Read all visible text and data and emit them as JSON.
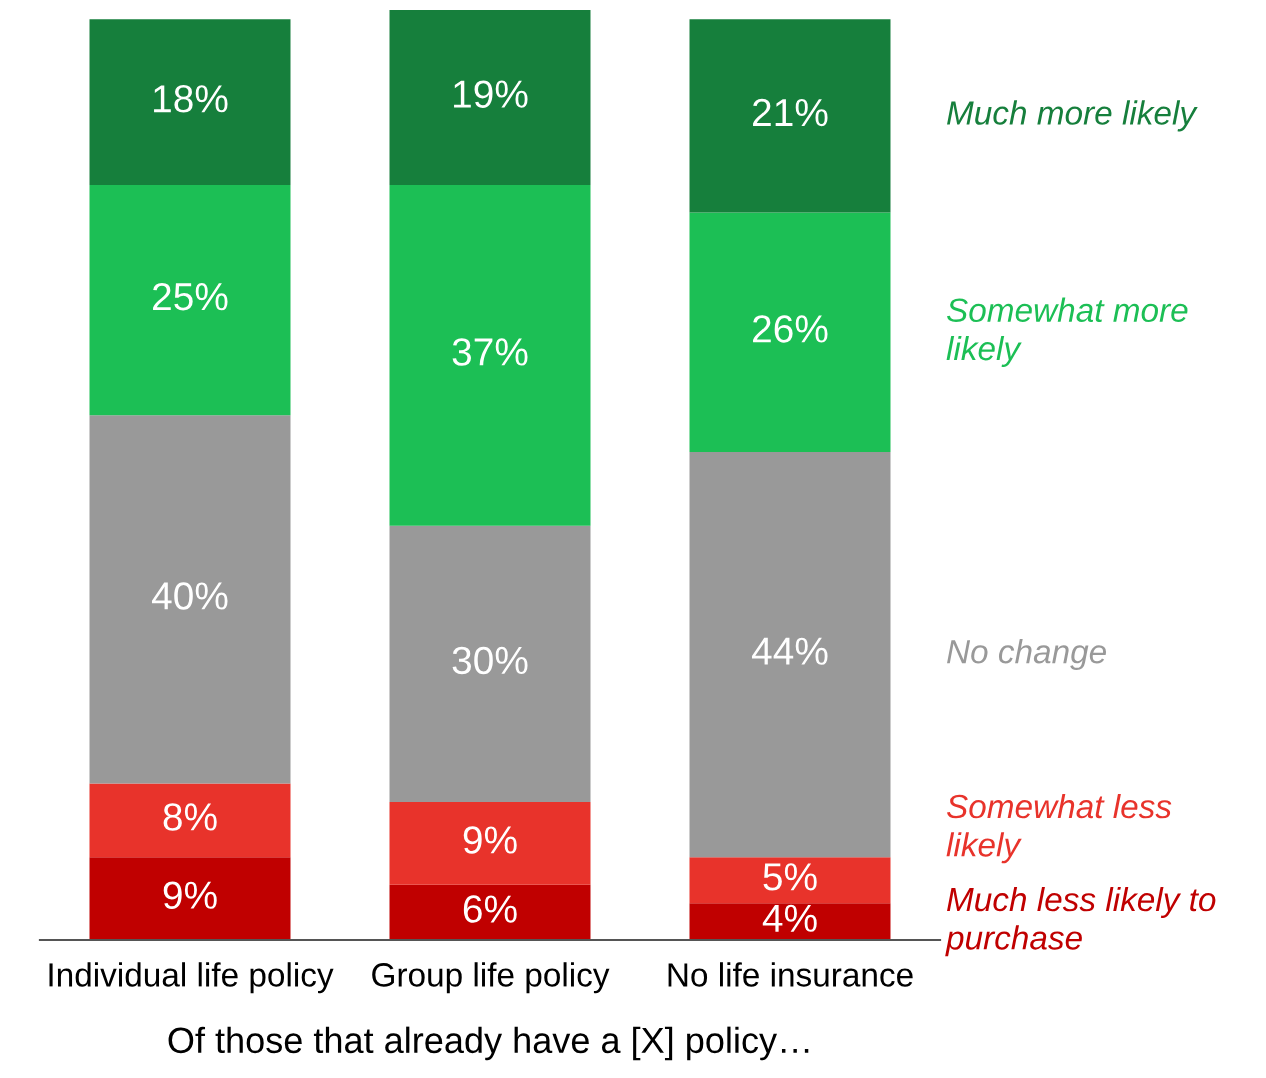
{
  "chart_data": {
    "type": "bar",
    "stacked": true,
    "xlabel": "Of those that already have a [X] policy…",
    "categories": [
      "Individual life policy",
      "Group life policy",
      "No life insurance"
    ],
    "series": [
      {
        "name": "Much less likely to purchase",
        "color": "#c00000",
        "values": [
          9,
          6,
          4
        ],
        "value_labels": [
          "9%",
          "6%",
          "4%"
        ]
      },
      {
        "name": "Somewhat less likely",
        "color": "#e8332b",
        "values": [
          8,
          9,
          5
        ],
        "value_labels": [
          "8%",
          "9%",
          "5%"
        ]
      },
      {
        "name": "No change",
        "color": "#999999",
        "values": [
          40,
          30,
          44
        ],
        "value_labels": [
          "40%",
          "30%",
          "44%"
        ]
      },
      {
        "name": "Somewhat more likely",
        "color": "#1cbf55",
        "values": [
          25,
          37,
          26
        ],
        "value_labels": [
          "25%",
          "37%",
          "26%"
        ]
      },
      {
        "name": "Much more likely",
        "color": "#167f3c",
        "values": [
          18,
          19,
          21
        ],
        "value_labels": [
          "18%",
          "19%",
          "21%"
        ]
      }
    ],
    "legend": "right",
    "grid": false
  }
}
